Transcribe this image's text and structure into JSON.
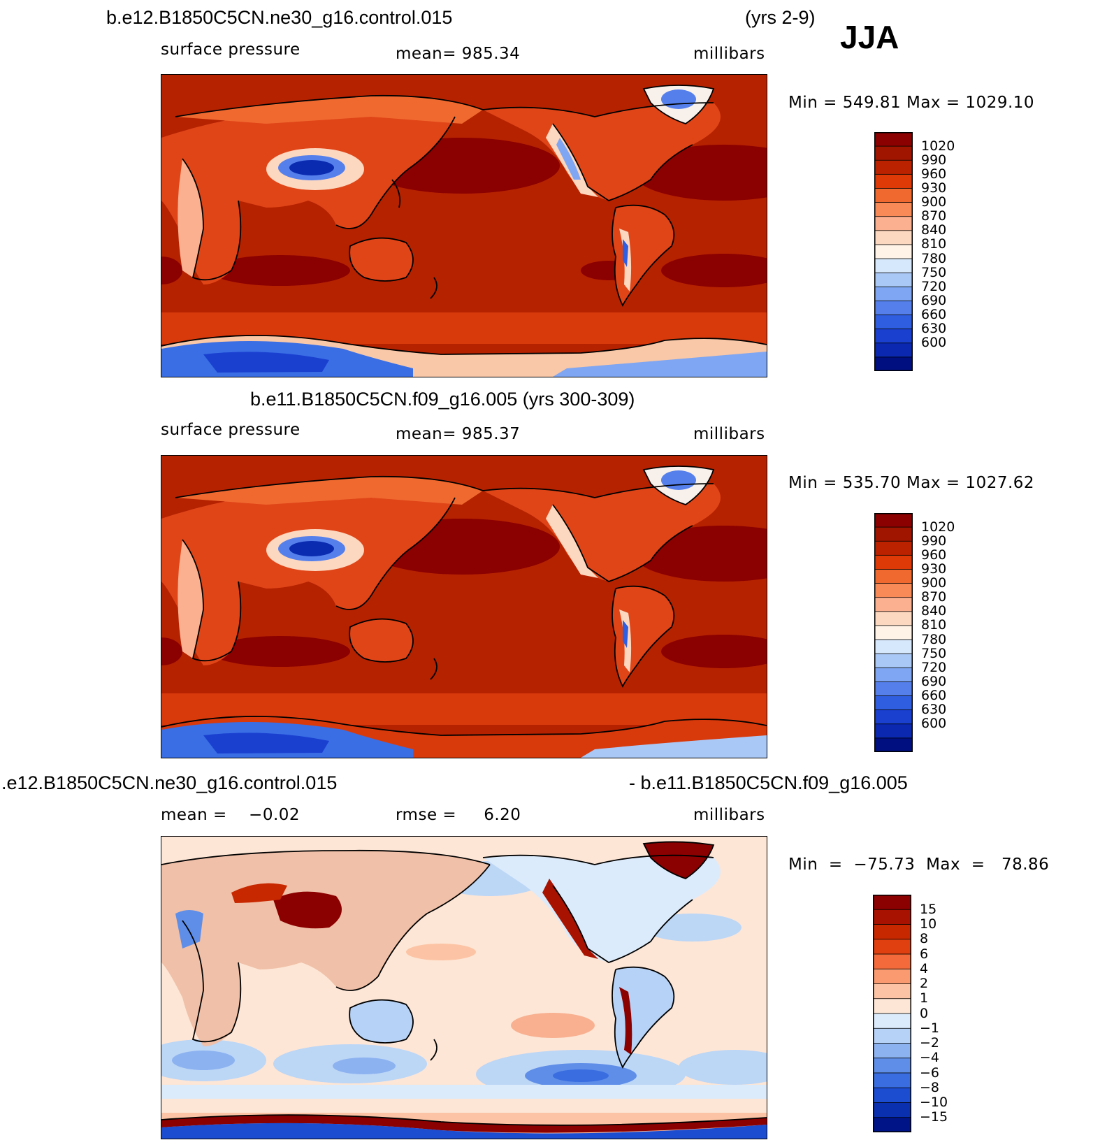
{
  "season": "JJA",
  "panels": [
    {
      "title": "b.e12.B1850C5CN.ne30_g16.control.015",
      "title_years": "(yrs 2-9)",
      "left_label": "surface pressure",
      "center_label": "mean=  985.34",
      "units": "millibars",
      "minmax": "Min  =  549.81  Max  =  1029.10",
      "colorbar": {
        "labels": [
          "1020",
          "990",
          "960",
          "930",
          "900",
          "870",
          "840",
          "810",
          "780",
          "750",
          "720",
          "690",
          "660",
          "630",
          "600"
        ],
        "colors": [
          "#8b0000",
          "#a01500",
          "#bb2200",
          "#dd3a08",
          "#f06a30",
          "#f88a58",
          "#fbb090",
          "#fdd8c0",
          "#fff2e6",
          "#d6e8fb",
          "#aac8f6",
          "#7fa6f2",
          "#5580ec",
          "#2f5ee0",
          "#1a40d0",
          "#0a28b0",
          "#000f80"
        ]
      },
      "map": {
        "bg": "#b52200",
        "land": "#e04518",
        "high": "#8b0000",
        "antarctic": "#2a5ce0",
        "tibet": "#0a2ab0"
      }
    },
    {
      "title": "b.e11.B1850C5CN.f09_g16.005 (yrs 300-309)",
      "left_label": "surface pressure",
      "center_label": "mean=  985.37",
      "units": "millibars",
      "minmax": "Min  =  535.70  Max  =  1027.62",
      "colorbar": {
        "labels": [
          "1020",
          "990",
          "960",
          "930",
          "900",
          "870",
          "840",
          "810",
          "780",
          "750",
          "720",
          "690",
          "660",
          "630",
          "600"
        ],
        "colors": [
          "#8b0000",
          "#a01500",
          "#bb2200",
          "#dd3a08",
          "#f06a30",
          "#f88a58",
          "#fbb090",
          "#fdd8c0",
          "#fff2e6",
          "#d6e8fb",
          "#aac8f6",
          "#7fa6f2",
          "#5580ec",
          "#2f5ee0",
          "#1a40d0",
          "#0a28b0",
          "#000f80"
        ]
      },
      "map": {
        "bg": "#b52200",
        "land": "#e04518",
        "high": "#8b0000",
        "antarctic": "#2a5ce0",
        "tibet": "#0a2ab0"
      }
    },
    {
      "title_left": ".e12.B1850C5CN.ne30_g16.control.015",
      "title_right": "- b.e11.B1850C5CN.f09_g16.005",
      "left_label": "mean =    −0.02",
      "center_label": "rmse =     6.20",
      "units": "millibars",
      "minmax": "Min  =  −75.73  Max  =   78.86",
      "colorbar": {
        "labels": [
          "15",
          "10",
          "8",
          "6",
          "4",
          "2",
          "1",
          "0",
          "−1",
          "−2",
          "−4",
          "−6",
          "−8",
          "−10",
          "−15"
        ],
        "colors": [
          "#8b0000",
          "#a81200",
          "#c82800",
          "#e04010",
          "#f46a3a",
          "#f99a70",
          "#fcc4a4",
          "#fde6d6",
          "#dcebfb",
          "#b6d2f6",
          "#8cb2f0",
          "#5f8ee8",
          "#3a6ee0",
          "#1c4cd0",
          "#0a30b0",
          "#001488"
        ]
      },
      "map": {
        "bg": "#fde6d6",
        "land": "#f0c0a8",
        "neg": "#bcd6f6",
        "negdeep": "#5a86e4",
        "pos": "#f8b090",
        "posdeep": "#8b0000"
      }
    }
  ]
}
